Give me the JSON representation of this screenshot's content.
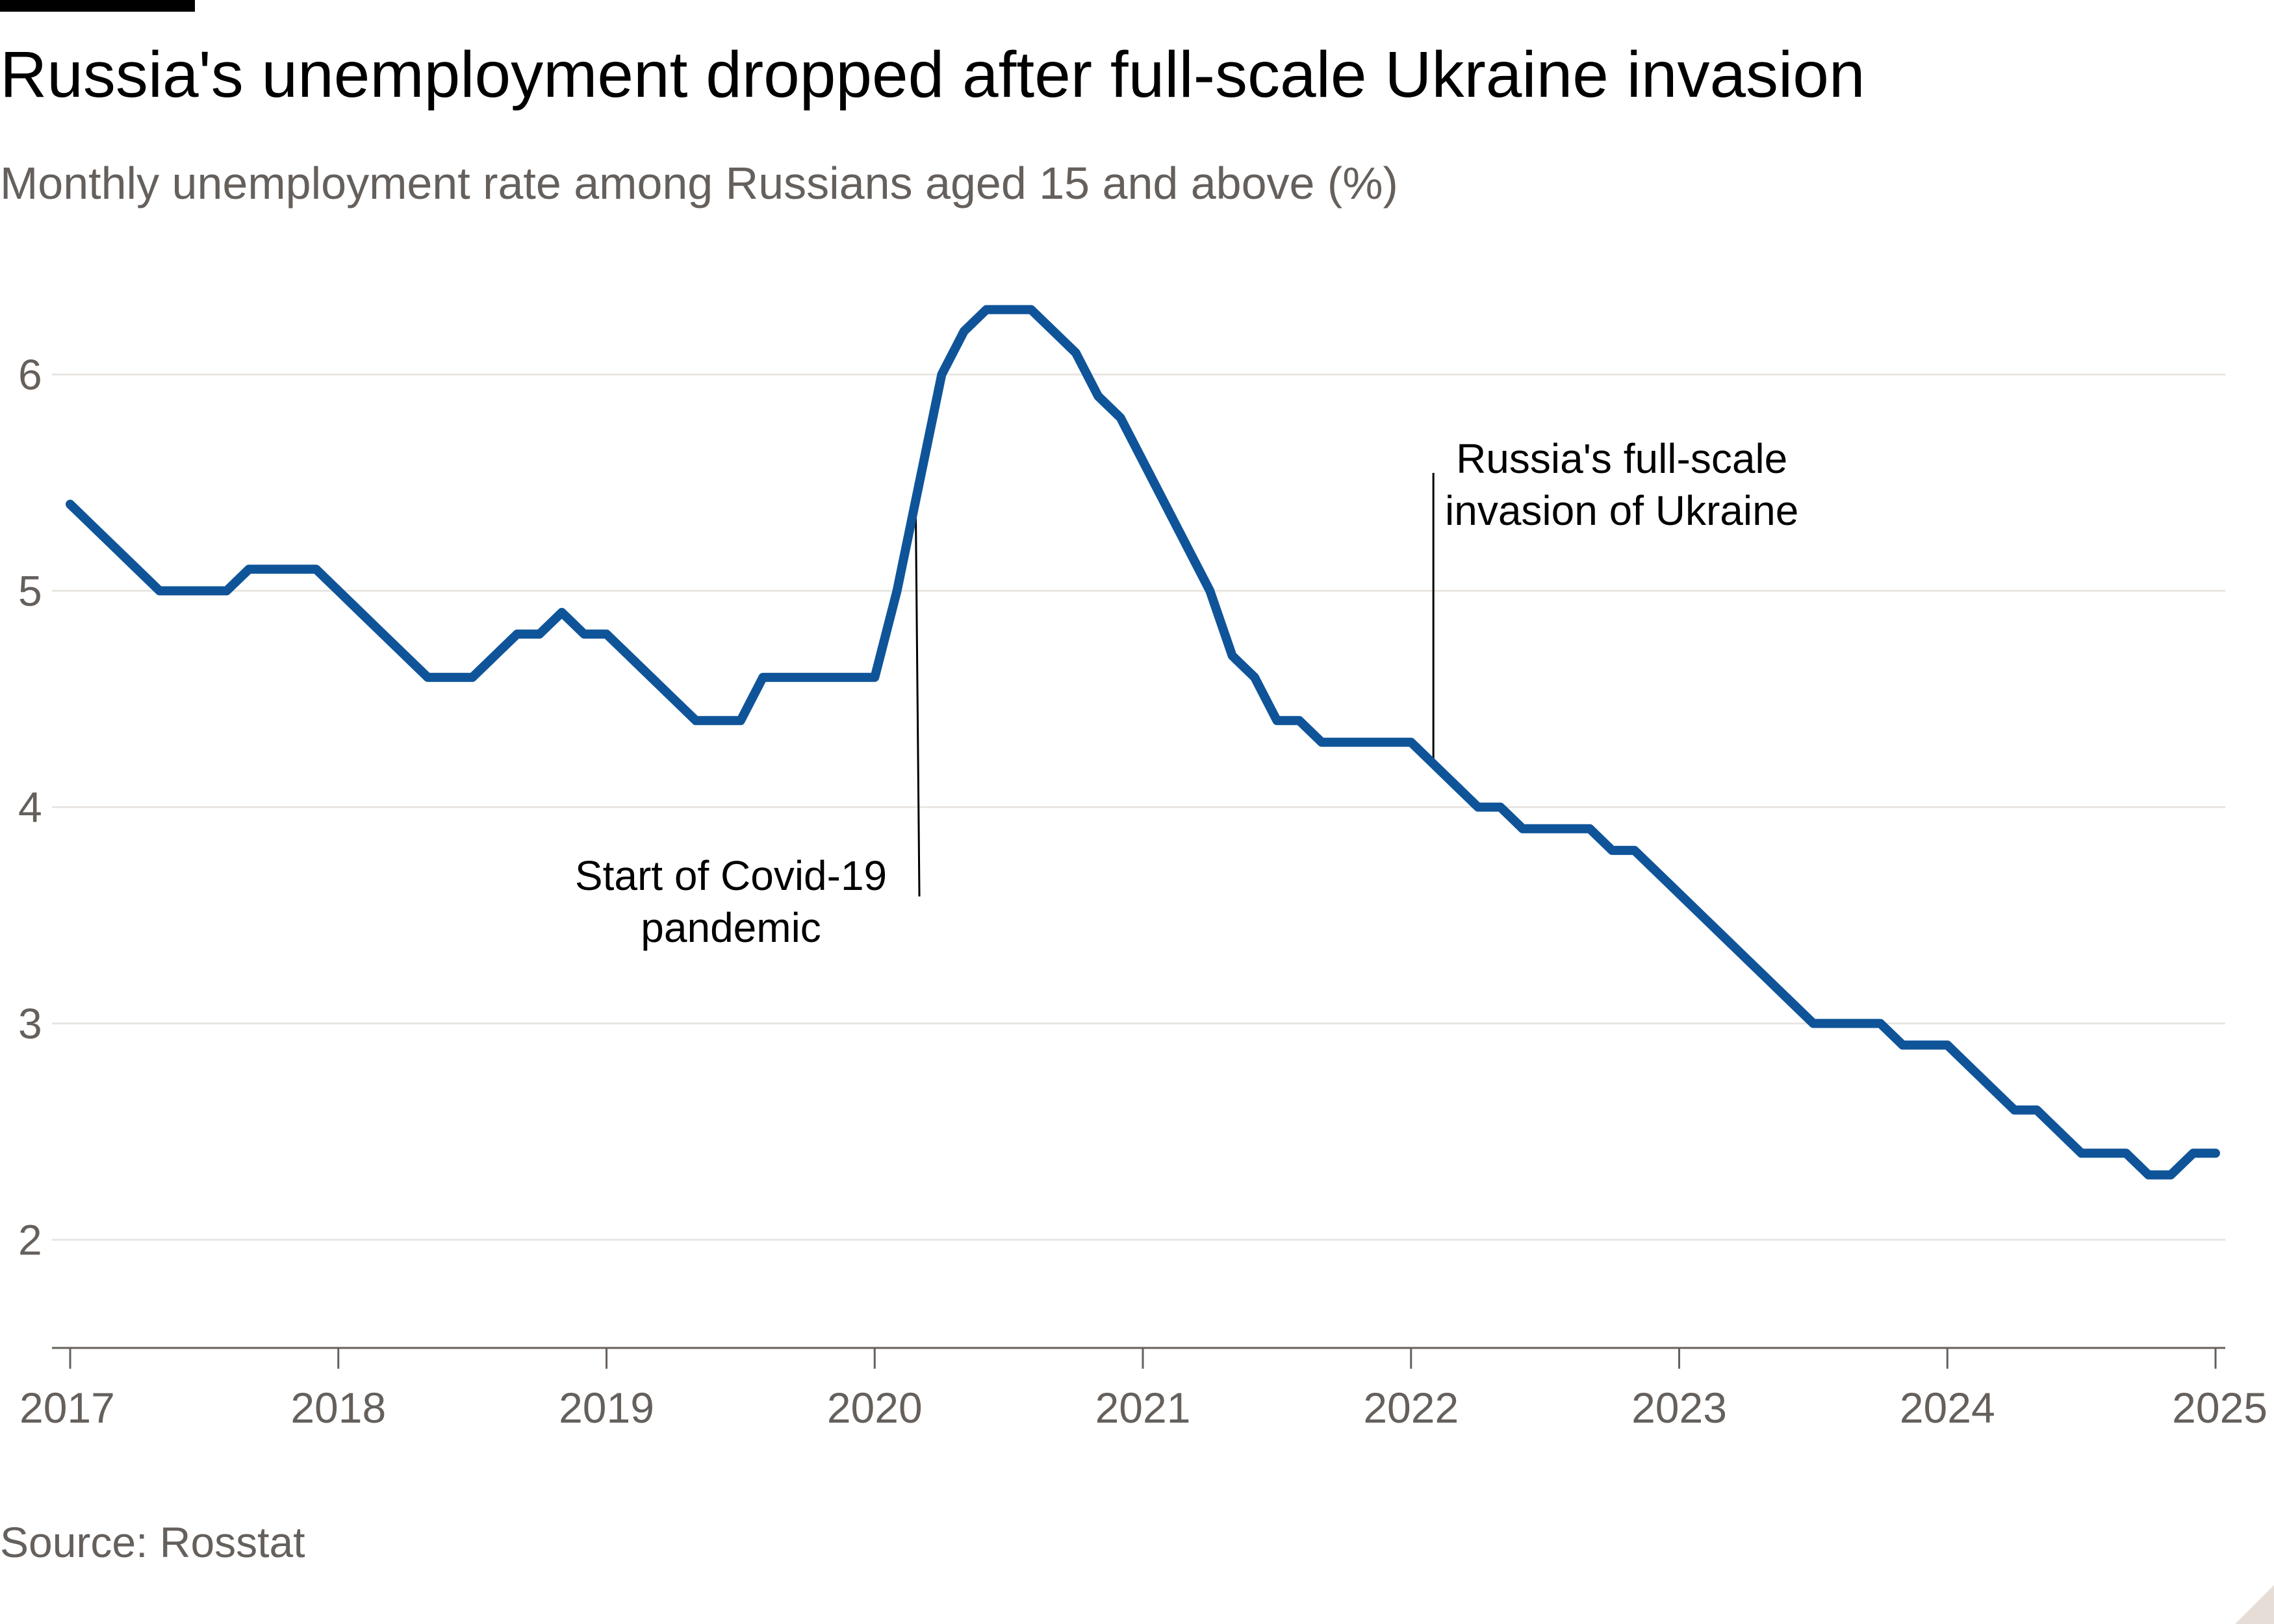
{
  "title": "Russia's unemployment dropped after full-scale Ukraine invasion",
  "subtitle": "Monthly unemployment rate among Russians aged 15 and above (%)",
  "source": "Source: Rosstat",
  "colors": {
    "line": "#0f5499",
    "grid": "#e9e6e3",
    "axis": "#66605c",
    "text": "#000000",
    "muted": "#66605c"
  },
  "chart_data": {
    "type": "line",
    "title": "Russia's unemployment dropped after full-scale Ukraine invasion",
    "subtitle": "Monthly unemployment rate among Russians aged 15 and above (%)",
    "xlabel": "",
    "ylabel": "",
    "ylim": [
      1.5,
      6.5
    ],
    "xlim": [
      "2017-01",
      "2025-01"
    ],
    "grid": true,
    "legend": "none",
    "y_ticks": [
      2,
      3,
      4,
      5,
      6
    ],
    "x_ticks": [
      "2017",
      "2018",
      "2019",
      "2020",
      "2021",
      "2022",
      "2023",
      "2024",
      "2025"
    ],
    "series": [
      {
        "x": [
          "2017-01",
          "2017-02",
          "2017-03",
          "2017-04",
          "2017-05",
          "2017-06",
          "2017-07",
          "2017-08",
          "2017-09",
          "2017-10",
          "2017-11",
          "2017-12",
          "2018-01",
          "2018-02",
          "2018-03",
          "2018-04",
          "2018-05",
          "2018-06",
          "2018-07",
          "2018-08",
          "2018-09",
          "2018-10",
          "2018-11",
          "2018-12",
          "2019-01",
          "2019-02",
          "2019-03",
          "2019-04",
          "2019-05",
          "2019-06",
          "2019-07",
          "2019-08",
          "2019-09",
          "2019-10",
          "2019-11",
          "2019-12",
          "2020-01",
          "2020-02",
          "2020-03",
          "2020-04",
          "2020-05",
          "2020-06",
          "2020-07",
          "2020-08",
          "2020-09",
          "2020-10",
          "2020-11",
          "2020-12",
          "2021-01",
          "2021-02",
          "2021-03",
          "2021-04",
          "2021-05",
          "2021-06",
          "2021-07",
          "2021-08",
          "2021-09",
          "2021-10",
          "2021-11",
          "2021-12",
          "2022-01",
          "2022-02",
          "2022-03",
          "2022-04",
          "2022-05",
          "2022-06",
          "2022-07",
          "2022-08",
          "2022-09",
          "2022-10",
          "2022-11",
          "2022-12",
          "2023-01",
          "2023-02",
          "2023-03",
          "2023-04",
          "2023-05",
          "2023-06",
          "2023-07",
          "2023-08",
          "2023-09",
          "2023-10",
          "2023-11",
          "2023-12",
          "2024-01",
          "2024-02",
          "2024-03",
          "2024-04",
          "2024-05",
          "2024-06",
          "2024-07",
          "2024-08",
          "2024-09",
          "2024-10",
          "2024-11",
          "2024-12",
          "2025-01"
        ],
        "values": [
          5.4,
          5.3,
          5.2,
          5.1,
          5.0,
          5.0,
          5.0,
          5.0,
          5.1,
          5.1,
          5.1,
          5.1,
          5.0,
          4.9,
          4.8,
          4.7,
          4.6,
          4.6,
          4.6,
          4.7,
          4.8,
          4.8,
          4.9,
          4.8,
          4.8,
          4.7,
          4.6,
          4.5,
          4.4,
          4.4,
          4.4,
          4.6,
          4.6,
          4.6,
          4.6,
          4.6,
          4.6,
          5.0,
          5.5,
          6.0,
          6.2,
          6.3,
          6.3,
          6.3,
          6.2,
          6.1,
          5.9,
          5.8,
          5.6,
          5.4,
          5.2,
          5.0,
          4.7,
          4.6,
          4.4,
          4.4,
          4.3,
          4.3,
          4.3,
          4.3,
          4.3,
          4.2,
          4.1,
          4.0,
          4.0,
          3.9,
          3.9,
          3.9,
          3.9,
          3.8,
          3.8,
          3.7,
          3.6,
          3.5,
          3.4,
          3.3,
          3.2,
          3.1,
          3.0,
          3.0,
          3.0,
          3.0,
          2.9,
          2.9,
          2.9,
          2.8,
          2.7,
          2.6,
          2.6,
          2.5,
          2.4,
          2.4,
          2.4,
          2.3,
          2.3,
          2.4,
          2.4
        ]
      }
    ],
    "annotations": [
      {
        "x": "2020-03",
        "lines": [
          "Start of Covid-19",
          "pandemic"
        ]
      },
      {
        "x": "2022-02",
        "lines": [
          "Russia's full-scale",
          "invasion of Ukraine"
        ]
      }
    ]
  }
}
